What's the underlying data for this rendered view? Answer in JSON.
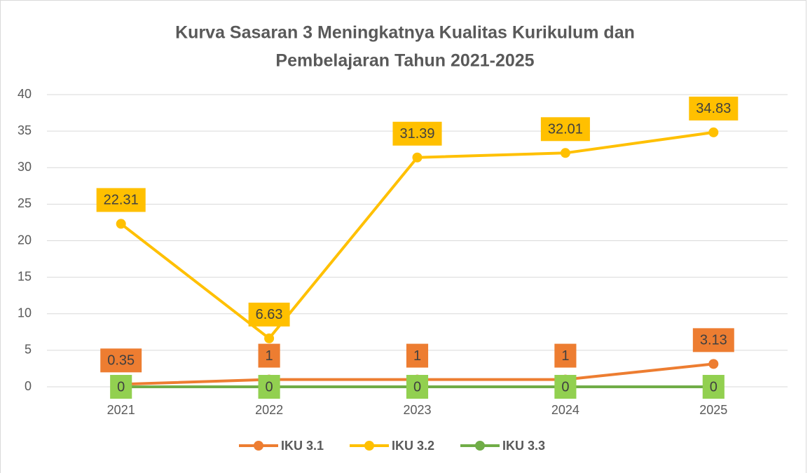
{
  "chart_data": {
    "type": "line",
    "title": [
      "Kurva Sasaran 3 Meningkatnya Kualitas Kurikulum dan",
      "Pembelajaran Tahun 2021-2025"
    ],
    "categories": [
      "2021",
      "2022",
      "2023",
      "2024",
      "2025"
    ],
    "series": [
      {
        "name": "IKU 3.1",
        "color": "#ED7D31",
        "values": [
          0.35,
          1,
          1,
          1,
          3.13
        ],
        "label_position": "above"
      },
      {
        "name": "IKU 3.2",
        "color": "#FFC000",
        "values": [
          22.31,
          6.63,
          31.39,
          32.01,
          34.83
        ],
        "label_position": "above"
      },
      {
        "name": "IKU 3.3",
        "color": "#70AD47",
        "values": [
          0,
          0,
          0,
          0,
          0
        ],
        "label_position": "center"
      }
    ],
    "ylim": [
      0,
      40
    ],
    "yticks": [
      0,
      5,
      10,
      15,
      20,
      25,
      30,
      35,
      40
    ],
    "grid": true,
    "legend": "bottom"
  }
}
